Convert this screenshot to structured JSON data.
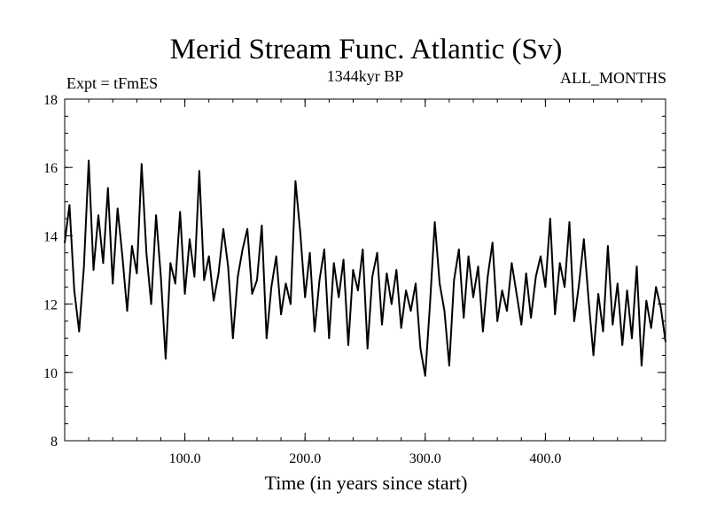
{
  "chart_data": {
    "type": "line",
    "title": "Merid Stream Func. Atlantic (Sv)",
    "subtitle_left": "Expt = tFmES",
    "subtitle_center": "1344kyr BP",
    "subtitle_right": "ALL_MONTHS",
    "xlabel": "Time (in years since start)",
    "ylabel": "",
    "xlim": [
      0,
      500
    ],
    "ylim": [
      8,
      18
    ],
    "x_ticks": [
      100,
      200,
      300,
      400
    ],
    "x_tick_labels": [
      "100.0",
      "200.0",
      "300.0",
      "400.0"
    ],
    "y_ticks": [
      8,
      10,
      12,
      14,
      16,
      18
    ],
    "y_tick_labels": [
      "8",
      "10",
      "12",
      "14",
      "16",
      "18"
    ],
    "series": [
      {
        "name": "Merid Stream Func. Atlantic",
        "color": "#000000",
        "x": [
          0,
          4,
          8,
          12,
          16,
          20,
          24,
          28,
          32,
          36,
          40,
          44,
          48,
          52,
          56,
          60,
          64,
          68,
          72,
          76,
          80,
          84,
          88,
          92,
          96,
          100,
          104,
          108,
          112,
          116,
          120,
          124,
          128,
          132,
          136,
          140,
          144,
          148,
          152,
          156,
          160,
          164,
          168,
          172,
          176,
          180,
          184,
          188,
          192,
          196,
          200,
          204,
          208,
          212,
          216,
          220,
          224,
          228,
          232,
          236,
          240,
          244,
          248,
          252,
          256,
          260,
          264,
          268,
          272,
          276,
          280,
          284,
          288,
          292,
          296,
          300,
          304,
          308,
          312,
          316,
          320,
          324,
          328,
          332,
          336,
          340,
          344,
          348,
          352,
          356,
          360,
          364,
          368,
          372,
          376,
          380,
          384,
          388,
          392,
          396,
          400,
          404,
          408,
          412,
          416,
          420,
          424,
          428,
          432,
          436,
          440,
          444,
          448,
          452,
          456,
          460,
          464,
          468,
          472,
          476,
          480,
          484,
          488,
          492,
          496,
          500
        ],
        "values": [
          13.8,
          14.9,
          12.4,
          11.2,
          13.1,
          16.2,
          13.0,
          14.6,
          13.2,
          15.4,
          12.6,
          14.8,
          13.4,
          11.8,
          13.7,
          12.9,
          16.1,
          13.5,
          12.0,
          14.6,
          12.8,
          10.4,
          13.2,
          12.6,
          14.7,
          12.3,
          13.9,
          12.8,
          15.9,
          12.7,
          13.4,
          12.1,
          12.9,
          14.2,
          13.1,
          11.0,
          12.8,
          13.6,
          14.2,
          12.3,
          12.7,
          14.3,
          11.0,
          12.5,
          13.4,
          11.7,
          12.6,
          12.0,
          15.6,
          14.1,
          12.2,
          13.5,
          11.2,
          12.7,
          13.6,
          11.0,
          13.2,
          12.2,
          13.3,
          10.8,
          13.0,
          12.4,
          13.6,
          10.7,
          12.8,
          13.5,
          11.4,
          12.9,
          12.0,
          13.0,
          11.3,
          12.4,
          11.8,
          12.6,
          10.7,
          9.9,
          12.0,
          14.4,
          12.6,
          11.8,
          10.2,
          12.7,
          13.6,
          11.6,
          13.4,
          12.2,
          13.1,
          11.2,
          12.8,
          13.8,
          11.5,
          12.4,
          11.8,
          13.2,
          12.3,
          11.4,
          12.9,
          11.6,
          12.8,
          13.4,
          12.5,
          14.5,
          11.7,
          13.2,
          12.5,
          14.4,
          11.5,
          12.6,
          13.9,
          12.1,
          10.5,
          12.3,
          11.2,
          13.7,
          11.4,
          12.6,
          10.8,
          12.4,
          11.0,
          13.1,
          10.2,
          12.1,
          11.3,
          12.5,
          11.9,
          10.9
        ]
      }
    ]
  }
}
